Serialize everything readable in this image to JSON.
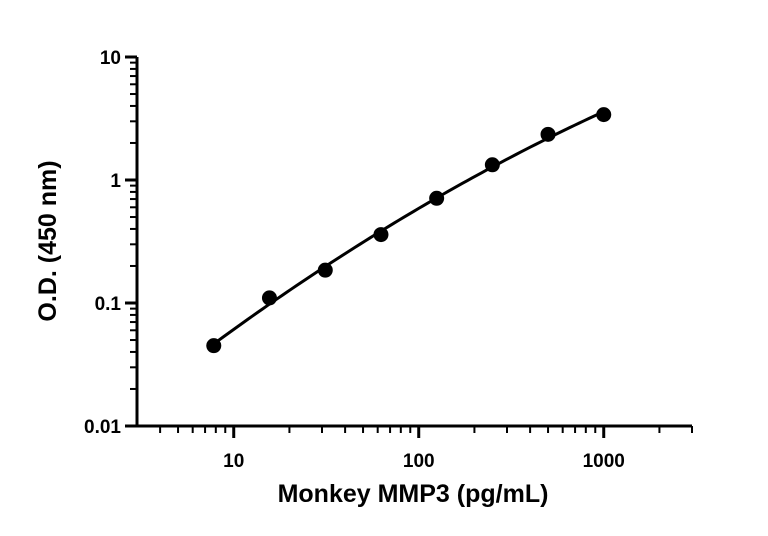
{
  "chart_data": {
    "type": "scatter",
    "title": "",
    "xlabel": "Monkey MMP3 (pg/mL)",
    "ylabel": "O.D. (450 nm)",
    "x_scale": "log",
    "y_scale": "log",
    "xlim": [
      3,
      3000
    ],
    "ylim": [
      0.01,
      10
    ],
    "x_ticks": [
      10,
      100,
      1000
    ],
    "y_ticks": [
      0.01,
      0.1,
      1,
      10
    ],
    "x_tick_labels": [
      "10",
      "100",
      "1000"
    ],
    "y_tick_labels": [
      "0.01",
      "0.1",
      "1",
      "10"
    ],
    "grid": false,
    "legend": "none",
    "series": [
      {
        "x": [
          7.8,
          15.6,
          31.25,
          62.5,
          125,
          250,
          500,
          1000
        ],
        "y": [
          0.045,
          0.11,
          0.185,
          0.36,
          0.71,
          1.33,
          2.35,
          3.4
        ],
        "fit_curve": true,
        "color": "#000000"
      }
    ]
  }
}
